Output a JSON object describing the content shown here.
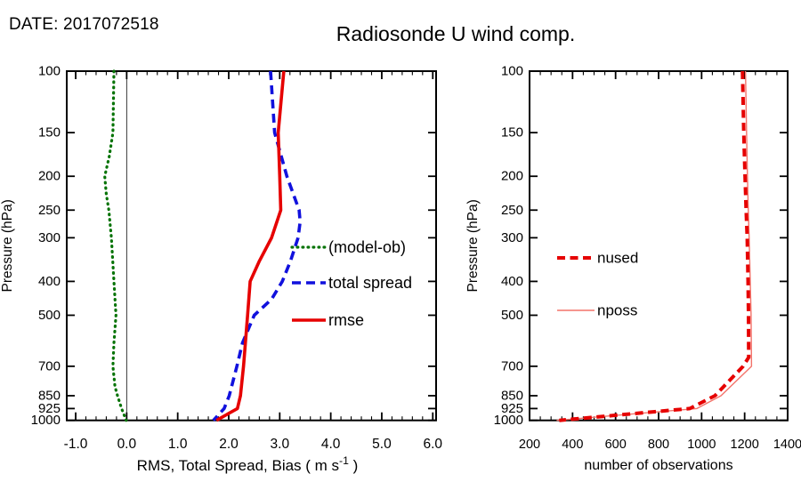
{
  "header": {
    "date_label": "DATE: 2017072518",
    "title": "Radiosonde U wind comp."
  },
  "chart_data": [
    {
      "type": "line",
      "panel": "left",
      "title": "",
      "xlabel": "RMS, Total Spread, Bias ( m s-1 )",
      "xlabel_parts": {
        "pre": "RMS, Total Spread, Bias ( m s",
        "sup": "-1",
        "post": " )"
      },
      "ylabel": "Pressure (hPa)",
      "xlim": [
        -1.175,
        6.065
      ],
      "xticks": [
        -1,
        0,
        1,
        2,
        3,
        4,
        5,
        6
      ],
      "xtick_labels": [
        "-1.0",
        "0.0",
        "1.0",
        "2.0",
        "3.0",
        "4.0",
        "5.0",
        "6.0"
      ],
      "x_minor_step": 0.2,
      "yscale": "log",
      "ylim": [
        100,
        1000
      ],
      "yticks": [
        100,
        150,
        200,
        250,
        300,
        400,
        500,
        700,
        850,
        925,
        1000
      ],
      "ytick_labels": [
        "100",
        "150",
        "200",
        "250",
        "300",
        "400",
        "500",
        "700",
        "850",
        "925",
        "1000"
      ],
      "zero_line_x": 0.0,
      "grid": false,
      "legend_position": "inside-right",
      "draw_order": [
        0,
        1,
        2
      ],
      "series": [
        {
          "name": "(model-ob)",
          "style": "dotted",
          "color": "#067306",
          "width": 3.2,
          "dash": "0.8 5.2",
          "points": [
            [
              100,
              -0.25
            ],
            [
              150,
              -0.27
            ],
            [
              175,
              -0.34
            ],
            [
              200,
              -0.43
            ],
            [
              225,
              -0.4
            ],
            [
              250,
              -0.35
            ],
            [
              300,
              -0.3
            ],
            [
              400,
              -0.25
            ],
            [
              500,
              -0.21
            ],
            [
              600,
              -0.25
            ],
            [
              700,
              -0.27
            ],
            [
              800,
              -0.23
            ],
            [
              850,
              -0.18
            ],
            [
              925,
              -0.1
            ],
            [
              1000,
              -0.01
            ]
          ]
        },
        {
          "name": "total spread",
          "style": "dashed",
          "color": "#1111dd",
          "width": 3.6,
          "dash": "10 6",
          "points": [
            [
              100,
              2.82
            ],
            [
              150,
              2.9
            ],
            [
              200,
              3.14
            ],
            [
              250,
              3.38
            ],
            [
              270,
              3.4
            ],
            [
              300,
              3.36
            ],
            [
              350,
              3.21
            ],
            [
              400,
              3.05
            ],
            [
              450,
              2.84
            ],
            [
              500,
              2.5
            ],
            [
              600,
              2.27
            ],
            [
              700,
              2.16
            ],
            [
              850,
              2.01
            ],
            [
              925,
              1.91
            ],
            [
              1000,
              1.7
            ]
          ]
        },
        {
          "name": "rmse",
          "style": "solid",
          "color": "#e60000",
          "width": 3.6,
          "dash": "",
          "points": [
            [
              100,
              3.08
            ],
            [
              150,
              2.97
            ],
            [
              200,
              3.0
            ],
            [
              250,
              3.02
            ],
            [
              300,
              2.84
            ],
            [
              350,
              2.6
            ],
            [
              400,
              2.42
            ],
            [
              500,
              2.37
            ],
            [
              700,
              2.29
            ],
            [
              850,
              2.23
            ],
            [
              925,
              2.17
            ],
            [
              1000,
              1.76
            ]
          ]
        }
      ]
    },
    {
      "type": "line",
      "panel": "right",
      "title": "",
      "xlabel": "number of observations",
      "ylabel": "Pressure (hPa)",
      "xlim": [
        200,
        1400
      ],
      "xticks": [
        200,
        400,
        600,
        800,
        1000,
        1200,
        1400
      ],
      "xtick_labels": [
        "200",
        "400",
        "600",
        "800",
        "1000",
        "1200",
        "1400"
      ],
      "x_minor_step": 50,
      "yscale": "log",
      "ylim": [
        100,
        1000
      ],
      "yticks": [
        100,
        150,
        200,
        250,
        300,
        400,
        500,
        700,
        850,
        925,
        1000
      ],
      "ytick_labels": [
        "100",
        "150",
        "200",
        "250",
        "300",
        "400",
        "500",
        "700",
        "850",
        "925",
        "1000"
      ],
      "zero_line_x": null,
      "grid": false,
      "legend_position": "inside-left",
      "draw_order": [
        1,
        0
      ],
      "series": [
        {
          "name": "nused",
          "style": "dashed",
          "color": "#e60000",
          "width": 4.0,
          "dash": "9 5.5",
          "points": [
            [
              100,
              1190
            ],
            [
              150,
              1196
            ],
            [
              200,
              1202
            ],
            [
              250,
              1207
            ],
            [
              300,
              1212
            ],
            [
              400,
              1216
            ],
            [
              500,
              1218
            ],
            [
              660,
              1219
            ],
            [
              700,
              1193
            ],
            [
              850,
              1062
            ],
            [
              925,
              945
            ],
            [
              1000,
              338
            ]
          ]
        },
        {
          "name": "nposs",
          "style": "solid",
          "color": "#f3736a",
          "width": 1.4,
          "dash": "",
          "points": [
            [
              100,
              1204
            ],
            [
              150,
              1209
            ],
            [
              200,
              1213
            ],
            [
              250,
              1217
            ],
            [
              300,
              1221
            ],
            [
              400,
              1226
            ],
            [
              500,
              1230
            ],
            [
              700,
              1232
            ],
            [
              850,
              1090
            ],
            [
              925,
              978
            ],
            [
              1000,
              326
            ]
          ]
        }
      ]
    }
  ]
}
